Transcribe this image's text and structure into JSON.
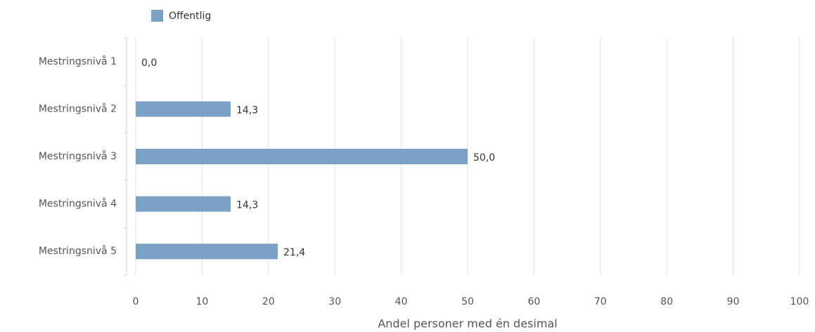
{
  "chart_data": {
    "type": "bar",
    "orientation": "horizontal",
    "categories": [
      "Mestringsnivå 1",
      "Mestringsnivå 2",
      "Mestringsnivå 3",
      "Mestringsnivå 4",
      "Mestringsnivå 5"
    ],
    "series": [
      {
        "name": "Offentlig",
        "color": "#7ba1c7",
        "values": [
          0.0,
          14.3,
          50.0,
          14.3,
          21.4
        ],
        "value_labels": [
          "0,0",
          "14,3",
          "50,0",
          "14,3",
          "21,4"
        ]
      }
    ],
    "xlabel": "Andel personer med én desimal",
    "xlim": [
      0,
      100
    ],
    "xticks": [
      0,
      10,
      20,
      30,
      40,
      50,
      60,
      70,
      80,
      90,
      100
    ],
    "grid": true,
    "legend": "top-left"
  }
}
